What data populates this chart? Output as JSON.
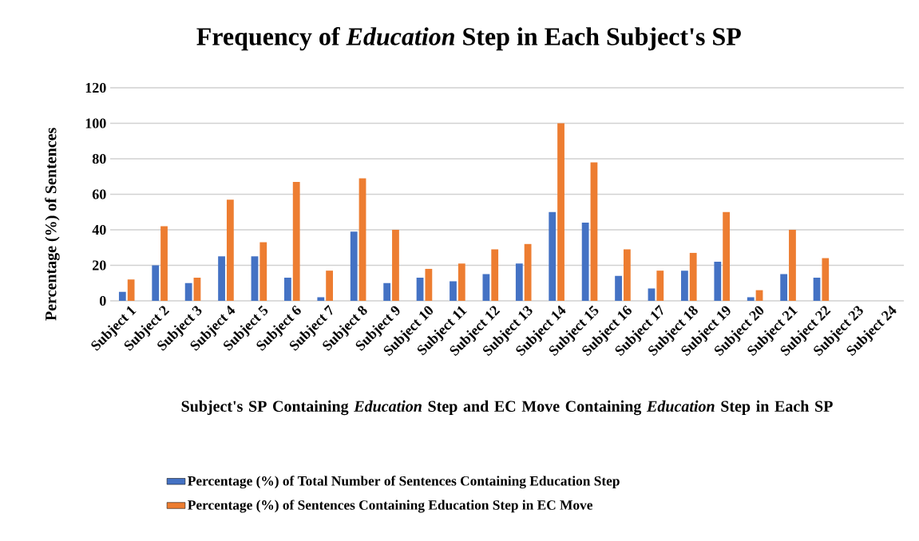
{
  "chart_data": {
    "type": "bar",
    "title": "Frequency of *Education* Step in Each Subject's SP",
    "xlabel": "Subject's SP Containing *Education* Step and EC Move Containing *Education* Step in Each SP",
    "ylabel": "Percentage (%) of Sentences",
    "categories": [
      "Subject 1",
      "Subject 2",
      "Subject 3",
      "Subject 4",
      "Subject 5",
      "Subject 6",
      "Subject 7",
      "Subject 8",
      "Subject 9",
      "Subject 10",
      "Subject 11",
      "Subject 12",
      "Subject 13",
      "Subject 14",
      "Subject 15",
      "Subject 16",
      "Subject 17",
      "Subject 18",
      "Subject 19",
      "Subject 20",
      "Subject 21",
      "Subject 22",
      "Subject 23",
      "Subject 24"
    ],
    "series": [
      {
        "name": "Percentage (%) of Total Number of Sentences Containing Education Step",
        "color": "#4472c4",
        "values": [
          5,
          20,
          10,
          25,
          25,
          13,
          2,
          39,
          10,
          13,
          11,
          15,
          21,
          50,
          44,
          14,
          7,
          17,
          22,
          2,
          15,
          13,
          null,
          null
        ]
      },
      {
        "name": "Percentage (%) of Sentences Containing Education Step in EC Move",
        "color": "#ed7d31",
        "values": [
          12,
          42,
          13,
          57,
          33,
          67,
          17,
          69,
          40,
          18,
          21,
          29,
          32,
          100,
          78,
          29,
          17,
          27,
          50,
          6,
          40,
          24,
          null,
          null
        ]
      }
    ],
    "ylim": [
      0,
      120
    ],
    "yticks": [
      0,
      20,
      40,
      60,
      80,
      100,
      120
    ],
    "grid": "y",
    "legend": "bottom"
  }
}
